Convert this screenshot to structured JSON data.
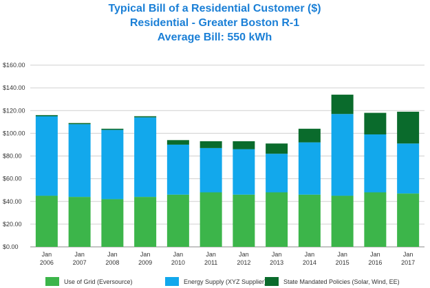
{
  "chart_data": {
    "type": "bar",
    "stacked": true,
    "title_lines": [
      "Typical Bill of a Residential Customer ($)",
      "Residential - Greater Boston R-1",
      "Average Bill: 550 kWh"
    ],
    "categories": [
      [
        "Jan",
        "2006"
      ],
      [
        "Jan",
        "2007"
      ],
      [
        "Jan",
        "2008"
      ],
      [
        "Jan",
        "2009"
      ],
      [
        "Jan",
        "2010"
      ],
      [
        "Jan",
        "2011"
      ],
      [
        "Jan",
        "2012"
      ],
      [
        "Jan",
        "2013"
      ],
      [
        "Jan",
        "2014"
      ],
      [
        "Jan",
        "2015"
      ],
      [
        "Jan",
        "2016"
      ],
      [
        "Jan",
        "2017"
      ]
    ],
    "series": [
      {
        "name": "Use of Grid (Eversource)",
        "color": "#3cb54a",
        "values": [
          45,
          44,
          42,
          44,
          46,
          48,
          46,
          48,
          46,
          45,
          48,
          47
        ]
      },
      {
        "name": "Energy Supply (XYZ Supplier)",
        "color": "#12a8ec",
        "values": [
          70,
          64,
          61,
          70,
          44,
          39,
          40,
          34,
          46,
          72,
          51,
          44
        ]
      },
      {
        "name": "State Mandated Policies (Solar, Wind, EE)",
        "color": "#0a6b2c",
        "values": [
          1,
          1,
          1,
          1,
          4,
          6,
          7,
          9,
          12,
          17,
          19,
          28
        ]
      }
    ],
    "ylim": [
      0,
      160
    ],
    "yticks": [
      0,
      20,
      40,
      60,
      80,
      100,
      120,
      140,
      160
    ],
    "ytick_labels": [
      "$0.00",
      "$20.00",
      "$40.00",
      "$60.00",
      "$80.00",
      "$100.00",
      "$120.00",
      "$140.00",
      "$160.00"
    ],
    "grid": true,
    "legend_position": "bottom"
  }
}
